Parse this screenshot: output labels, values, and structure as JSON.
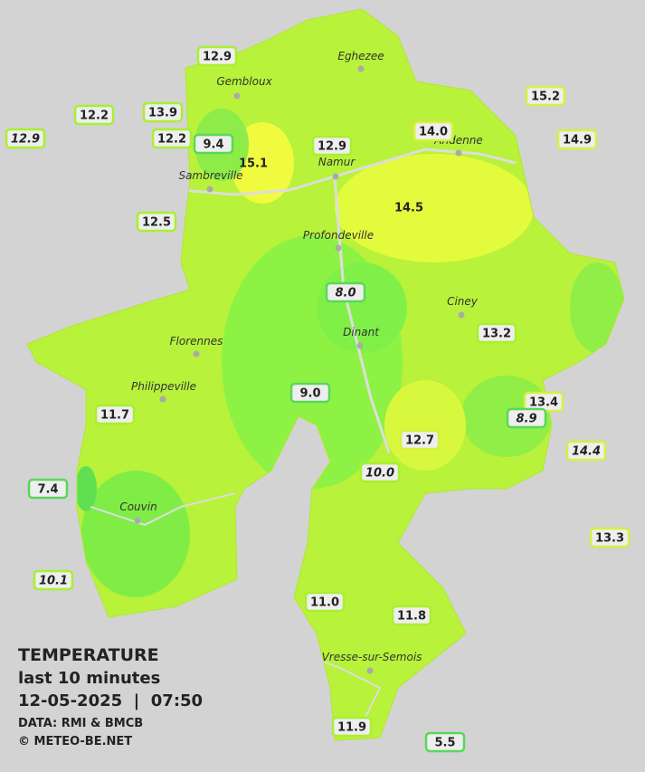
{
  "legend": {
    "title": "TEMPERATURE",
    "subtitle": "last 10 minutes",
    "timestamp": "12-05-2025  |  07:50",
    "source": "DATA: RMI & BMCB",
    "credit": "© METEO-BE.NET"
  },
  "cities": [
    "Eghezee",
    "Gembloux",
    "Andenne",
    "Namur",
    "Sambreville",
    "Profondeville",
    "Ciney",
    "Florennes",
    "Dinant",
    "Philippeville",
    "Couvin",
    "Vresse-sur-Semois"
  ],
  "readings": [
    "12.9",
    "12.2",
    "13.9",
    "12.9",
    "12.2",
    "9.4",
    "15.1",
    "12.9",
    "14.0",
    "15.2",
    "14.9",
    "14.5",
    "12.5",
    "8.0",
    "13.2",
    "9.0",
    "11.7",
    "13.4",
    "8.9",
    "12.7",
    "14.4",
    "10.0",
    "7.4",
    "13.3",
    "10.1",
    "11.0",
    "11.8",
    "11.9",
    "5.5"
  ]
}
